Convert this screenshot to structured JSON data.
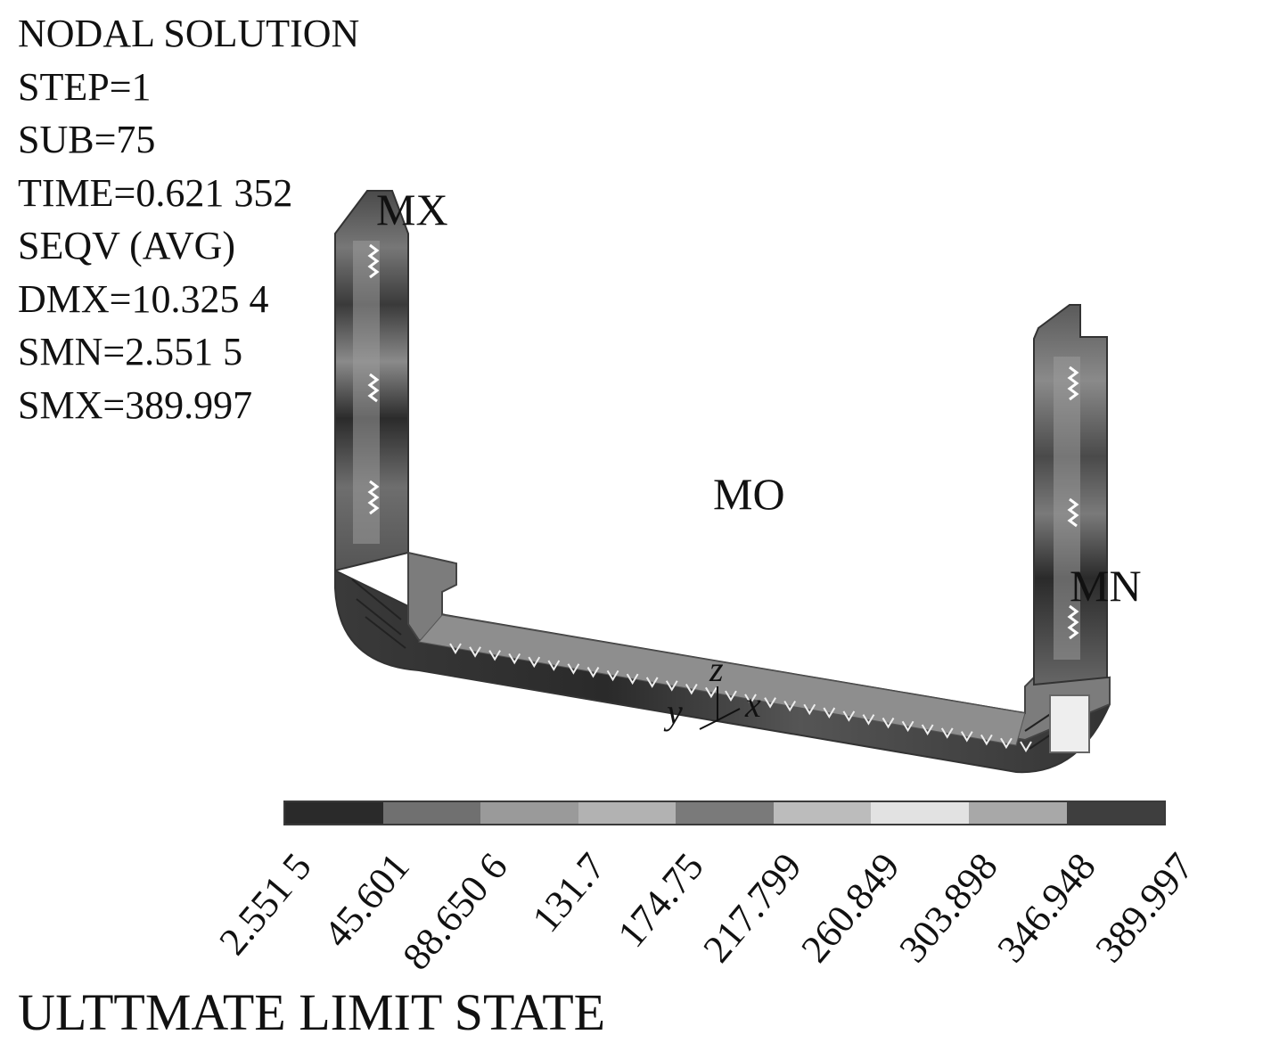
{
  "info_lines": [
    "NODAL SOLUTION",
    "STEP=1",
    "SUB=75",
    "TIME=0.621 352",
    "SEQV (AVG)",
    "DMX=10.325 4",
    "SMN=2.551 5",
    "SMX=389.997"
  ],
  "labels": {
    "mx": "MX",
    "mo": "MO",
    "mn": "MN"
  },
  "axes": {
    "z": "z",
    "y": "y",
    "x": "x"
  },
  "legend": {
    "colors": [
      "#2a2a2a",
      "#707070",
      "#9a9a9a",
      "#b2b2b2",
      "#7a7a7a",
      "#bcbcbc",
      "#e2e2e2",
      "#a8a8a8",
      "#3e3e3e"
    ],
    "values": [
      "2.551 5",
      "45.601",
      "88.650 6",
      "131.7",
      "174.75",
      "217.799",
      "260.849",
      "303.898",
      "346.948",
      "389.997"
    ]
  },
  "title": "ULTTMATE LIMIT STATE"
}
